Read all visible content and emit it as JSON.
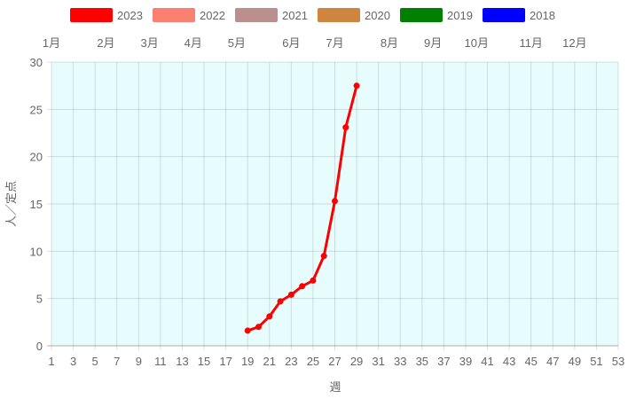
{
  "chart_data": {
    "type": "line",
    "title": "",
    "xlabel": "週",
    "ylabel": "人／定点",
    "xlim": [
      1,
      53
    ],
    "ylim": [
      0,
      30
    ],
    "x_ticks": [
      1,
      3,
      5,
      7,
      9,
      11,
      13,
      15,
      17,
      19,
      21,
      23,
      25,
      27,
      29,
      31,
      33,
      35,
      37,
      39,
      41,
      43,
      45,
      47,
      49,
      51,
      53
    ],
    "y_ticks": [
      0,
      5,
      10,
      15,
      20,
      25,
      30
    ],
    "month_ticks": [
      {
        "label": "1月",
        "week": 1
      },
      {
        "label": "2月",
        "week": 6
      },
      {
        "label": "3月",
        "week": 10
      },
      {
        "label": "4月",
        "week": 14
      },
      {
        "label": "5月",
        "week": 18
      },
      {
        "label": "6月",
        "week": 23
      },
      {
        "label": "7月",
        "week": 27
      },
      {
        "label": "8月",
        "week": 32
      },
      {
        "label": "9月",
        "week": 36
      },
      {
        "label": "10月",
        "week": 40
      },
      {
        "label": "11月",
        "week": 45
      },
      {
        "label": "12月",
        "week": 49
      }
    ],
    "grid": true,
    "plot_background": "#e6fcfd",
    "legend_position": "top",
    "legend": [
      {
        "name": "2023",
        "color": "#ff0000"
      },
      {
        "name": "2022",
        "color": "#fa8072"
      },
      {
        "name": "2021",
        "color": "#bc8f8f"
      },
      {
        "name": "2020",
        "color": "#cd853f"
      },
      {
        "name": "2019",
        "color": "#008000"
      },
      {
        "name": "2018",
        "color": "#0000ff"
      }
    ],
    "series": [
      {
        "name": "2023",
        "color": "#ff0000",
        "x": [
          19,
          20,
          21,
          22,
          23,
          24,
          25,
          26,
          27,
          28,
          29
        ],
        "y": [
          1.6,
          2.0,
          3.1,
          4.7,
          5.4,
          6.3,
          6.9,
          9.5,
          15.3,
          23.1,
          27.5
        ]
      }
    ]
  }
}
